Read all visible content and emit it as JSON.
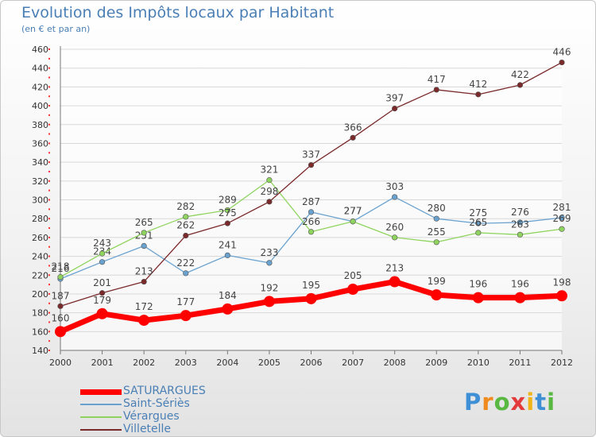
{
  "chart_data": {
    "type": "line",
    "title": "Evolution des Impôts locaux par Habitant",
    "subtitle": "(en € et par an)",
    "x": [
      "2000",
      "2001",
      "2002",
      "2003",
      "2004",
      "2005",
      "2006",
      "2007",
      "2008",
      "2009",
      "2010",
      "2011",
      "2012"
    ],
    "ylim": [
      140,
      460
    ],
    "yticks": [
      140,
      160,
      180,
      200,
      220,
      240,
      260,
      280,
      300,
      320,
      340,
      360,
      380,
      400,
      420,
      440,
      460
    ],
    "grid": "horizontal",
    "legend_position": "bottom-left",
    "series": [
      {
        "name": "SATURARGUES",
        "color": "#ff0000",
        "values": [
          160,
          179,
          172,
          177,
          184,
          192,
          195,
          205,
          213,
          199,
          196,
          196,
          198
        ]
      },
      {
        "name": "Saint-Sériès",
        "color": "#6aa2cf",
        "values": [
          216,
          234,
          251,
          222,
          241,
          233,
          287,
          277,
          303,
          280,
          275,
          276,
          281
        ]
      },
      {
        "name": "Vérargues",
        "color": "#8fd45e",
        "values": [
          218,
          243,
          265,
          282,
          289,
          321,
          266,
          277,
          260,
          255,
          265,
          263,
          269
        ]
      },
      {
        "name": "Villetelle",
        "color": "#7a2a2a",
        "values": [
          187,
          201,
          213,
          262,
          275,
          298,
          337,
          366,
          397,
          417,
          412,
          422,
          446
        ]
      }
    ]
  },
  "watermark": {
    "text": "Proxiti"
  }
}
